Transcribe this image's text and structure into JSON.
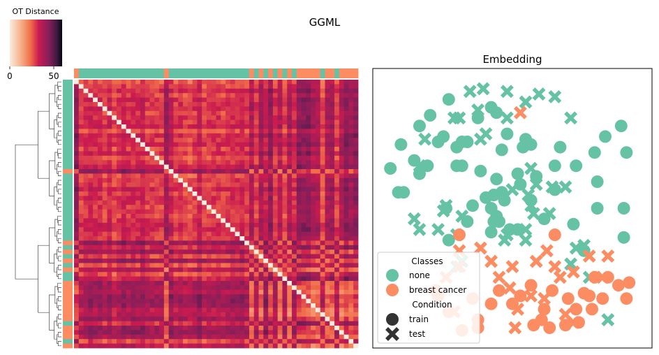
{
  "figure": {
    "title": "GGML"
  },
  "colorbar": {
    "label": "OT Distance",
    "ticks": [
      "0",
      "50"
    ],
    "vmin": 0,
    "vmax": 60
  },
  "colors": {
    "none": "#66c2a5",
    "breast_cancer": "#fc8d62",
    "marker_dark": "#333333"
  },
  "chart_data": [
    {
      "type": "heatmap",
      "title": "",
      "n": 60,
      "row_class_strip": [
        "none",
        "none",
        "none",
        "none",
        "none",
        "none",
        "none",
        "none",
        "none",
        "none",
        "none",
        "none",
        "none",
        "none",
        "none",
        "none",
        "none",
        "none",
        "none",
        "none",
        "breast_cancer",
        "none",
        "none",
        "none",
        "none",
        "none",
        "none",
        "none",
        "none",
        "none",
        "none",
        "none",
        "none",
        "none",
        "none",
        "none",
        "breast_cancer",
        "none",
        "breast_cancer",
        "none",
        "breast_cancer",
        "none",
        "breast_cancer",
        "none",
        "none",
        "breast_cancer",
        "breast_cancer",
        "breast_cancer",
        "breast_cancer",
        "breast_cancer",
        "breast_cancer",
        "breast_cancer",
        "breast_cancer",
        "breast_cancer",
        "none",
        "breast_cancer",
        "breast_cancer",
        "breast_cancer",
        "none",
        "breast_cancer"
      ],
      "col_class_strip": [
        "breast_cancer",
        "none",
        "none",
        "none",
        "none",
        "none",
        "none",
        "none",
        "none",
        "none",
        "none",
        "none",
        "none",
        "none",
        "none",
        "none",
        "none",
        "none",
        "none",
        "breast_cancer",
        "none",
        "none",
        "none",
        "none",
        "none",
        "none",
        "none",
        "none",
        "none",
        "none",
        "none",
        "none",
        "none",
        "none",
        "none",
        "none",
        "none",
        "breast_cancer",
        "none",
        "breast_cancer",
        "none",
        "breast_cancer",
        "none",
        "breast_cancer",
        "none",
        "breast_cancer",
        "none",
        "breast_cancer",
        "breast_cancer",
        "breast_cancer",
        "breast_cancer",
        "breast_cancer",
        "none",
        "breast_cancer",
        "breast_cancer",
        "none",
        "breast_cancer",
        "breast_cancer",
        "breast_cancer",
        "breast_cancer"
      ]
    },
    {
      "type": "scatter",
      "title": "Embedding",
      "xlim": [
        0,
        100
      ],
      "ylim": [
        0,
        100
      ],
      "legend": {
        "placement": "lower-left",
        "classes_title": "Classes",
        "classes": [
          "none",
          "breast cancer"
        ],
        "condition_title": "Condition",
        "conditions": [
          "train",
          "test"
        ]
      },
      "series": [
        {
          "name": "none",
          "condition": "train",
          "points": [
            [
              26,
              91
            ],
            [
              19,
              85
            ],
            [
              15,
              81
            ],
            [
              24,
              77
            ],
            [
              22,
              75
            ],
            [
              31,
              75
            ],
            [
              33,
              75
            ],
            [
              29,
              73
            ],
            [
              48,
              78
            ],
            [
              55,
              76
            ],
            [
              57,
              74
            ],
            [
              46,
              72
            ],
            [
              54,
              73
            ],
            [
              8,
              74
            ],
            [
              13,
              68
            ],
            [
              18,
              66
            ],
            [
              4,
              65
            ],
            [
              15,
              63
            ],
            [
              29,
              66
            ],
            [
              31,
              66
            ],
            [
              38,
              64
            ],
            [
              44,
              61
            ],
            [
              52,
              63
            ],
            [
              59,
              62
            ],
            [
              53,
              59
            ],
            [
              47,
              53
            ],
            [
              43,
              55
            ],
            [
              46,
              56
            ],
            [
              40,
              54
            ],
            [
              42,
              50
            ],
            [
              44,
              47
            ],
            [
              35,
              51
            ],
            [
              43,
              45
            ],
            [
              57,
              53
            ],
            [
              66,
              66
            ],
            [
              68,
              73
            ],
            [
              66,
              57
            ],
            [
              74,
              66
            ],
            [
              81,
              71
            ],
            [
              85,
              77
            ],
            [
              91,
              81
            ],
            [
              93,
              71
            ],
            [
              7,
              56
            ],
            [
              9,
              56
            ],
            [
              82,
              60
            ],
            [
              82,
              50
            ],
            [
              92,
              50
            ],
            [
              62,
              46
            ],
            [
              52,
              42
            ],
            [
              45,
              45
            ],
            [
              33,
              45
            ],
            [
              42,
              41
            ],
            [
              26,
              38
            ],
            [
              25,
              50
            ],
            [
              49,
              42
            ],
            [
              73,
              44
            ],
            [
              77,
              34
            ],
            [
              92,
              39
            ],
            [
              37,
              84
            ],
            [
              44,
              86
            ],
            [
              42,
              88
            ]
          ]
        },
        {
          "name": "none",
          "condition": "test",
          "points": [
            [
              39,
              95
            ],
            [
              34,
              94
            ],
            [
              48,
              94
            ],
            [
              60,
              93
            ],
            [
              66,
              92
            ],
            [
              55,
              90
            ],
            [
              37,
              87
            ],
            [
              48,
              84
            ],
            [
              28,
              84
            ],
            [
              30,
              84
            ],
            [
              72,
              84
            ],
            [
              40,
              78
            ],
            [
              38,
              76
            ],
            [
              17,
              76
            ],
            [
              15,
              66
            ],
            [
              50,
              57
            ],
            [
              56,
              55
            ],
            [
              57,
              65
            ],
            [
              65,
              58
            ],
            [
              57,
              51
            ],
            [
              58,
              48
            ],
            [
              25,
              51
            ],
            [
              24,
              49
            ],
            [
              31,
              47
            ],
            [
              15,
              42
            ],
            [
              48,
              40
            ],
            [
              13,
              46
            ],
            [
              29,
              40
            ],
            [
              55,
              42
            ],
            [
              59,
              59
            ],
            [
              64,
              48
            ],
            [
              70,
              58
            ],
            [
              22,
              42
            ],
            [
              74,
              35
            ],
            [
              77,
              36
            ],
            [
              31,
              30
            ],
            [
              29,
              28
            ],
            [
              72,
              29
            ],
            [
              47,
              38
            ],
            [
              55,
              38
            ],
            [
              79,
              24
            ],
            [
              86,
              8
            ]
          ]
        },
        {
          "name": "breast cancer",
          "condition": "train",
          "points": [
            [
              30,
              40
            ],
            [
              66,
              40
            ],
            [
              86,
              24
            ],
            [
              90,
              21
            ],
            [
              94,
              22
            ],
            [
              93,
              16
            ],
            [
              84,
              16
            ],
            [
              80,
              12
            ],
            [
              77,
              18
            ],
            [
              71,
              16
            ],
            [
              74,
              12
            ],
            [
              65,
              19
            ],
            [
              62,
              12
            ],
            [
              57,
              21
            ],
            [
              53,
              17
            ],
            [
              50,
              14
            ],
            [
              45,
              19
            ],
            [
              42,
              14
            ],
            [
              35,
              16
            ],
            [
              21,
              19
            ],
            [
              22,
              17
            ],
            [
              26,
              11
            ],
            [
              61,
              8
            ],
            [
              70,
              6
            ],
            [
              75,
              7
            ],
            [
              58,
              6
            ],
            [
              64,
              5
            ],
            [
              37,
              8
            ],
            [
              37,
              5
            ],
            [
              31,
              4
            ],
            [
              79,
              17
            ],
            [
              81,
              24
            ]
          ]
        },
        {
          "name": "breast cancer",
          "condition": "test",
          "points": [
            [
              53,
              86
            ],
            [
              42,
              30
            ],
            [
              38,
              35
            ],
            [
              30,
              34
            ],
            [
              63,
              34
            ],
            [
              59,
              30
            ],
            [
              50,
              28
            ],
            [
              45,
              24
            ],
            [
              30,
              28
            ],
            [
              25,
              24
            ],
            [
              49,
              20
            ],
            [
              57,
              17
            ],
            [
              62,
              16
            ],
            [
              52,
              12
            ],
            [
              28,
              11
            ],
            [
              70,
              10
            ],
            [
              73,
              26
            ],
            [
              79,
              32
            ],
            [
              86,
              32
            ],
            [
              84,
              24
            ],
            [
              68,
              24
            ],
            [
              66,
              28
            ],
            [
              51,
              5
            ],
            [
              73,
              7
            ]
          ]
        }
      ]
    }
  ]
}
